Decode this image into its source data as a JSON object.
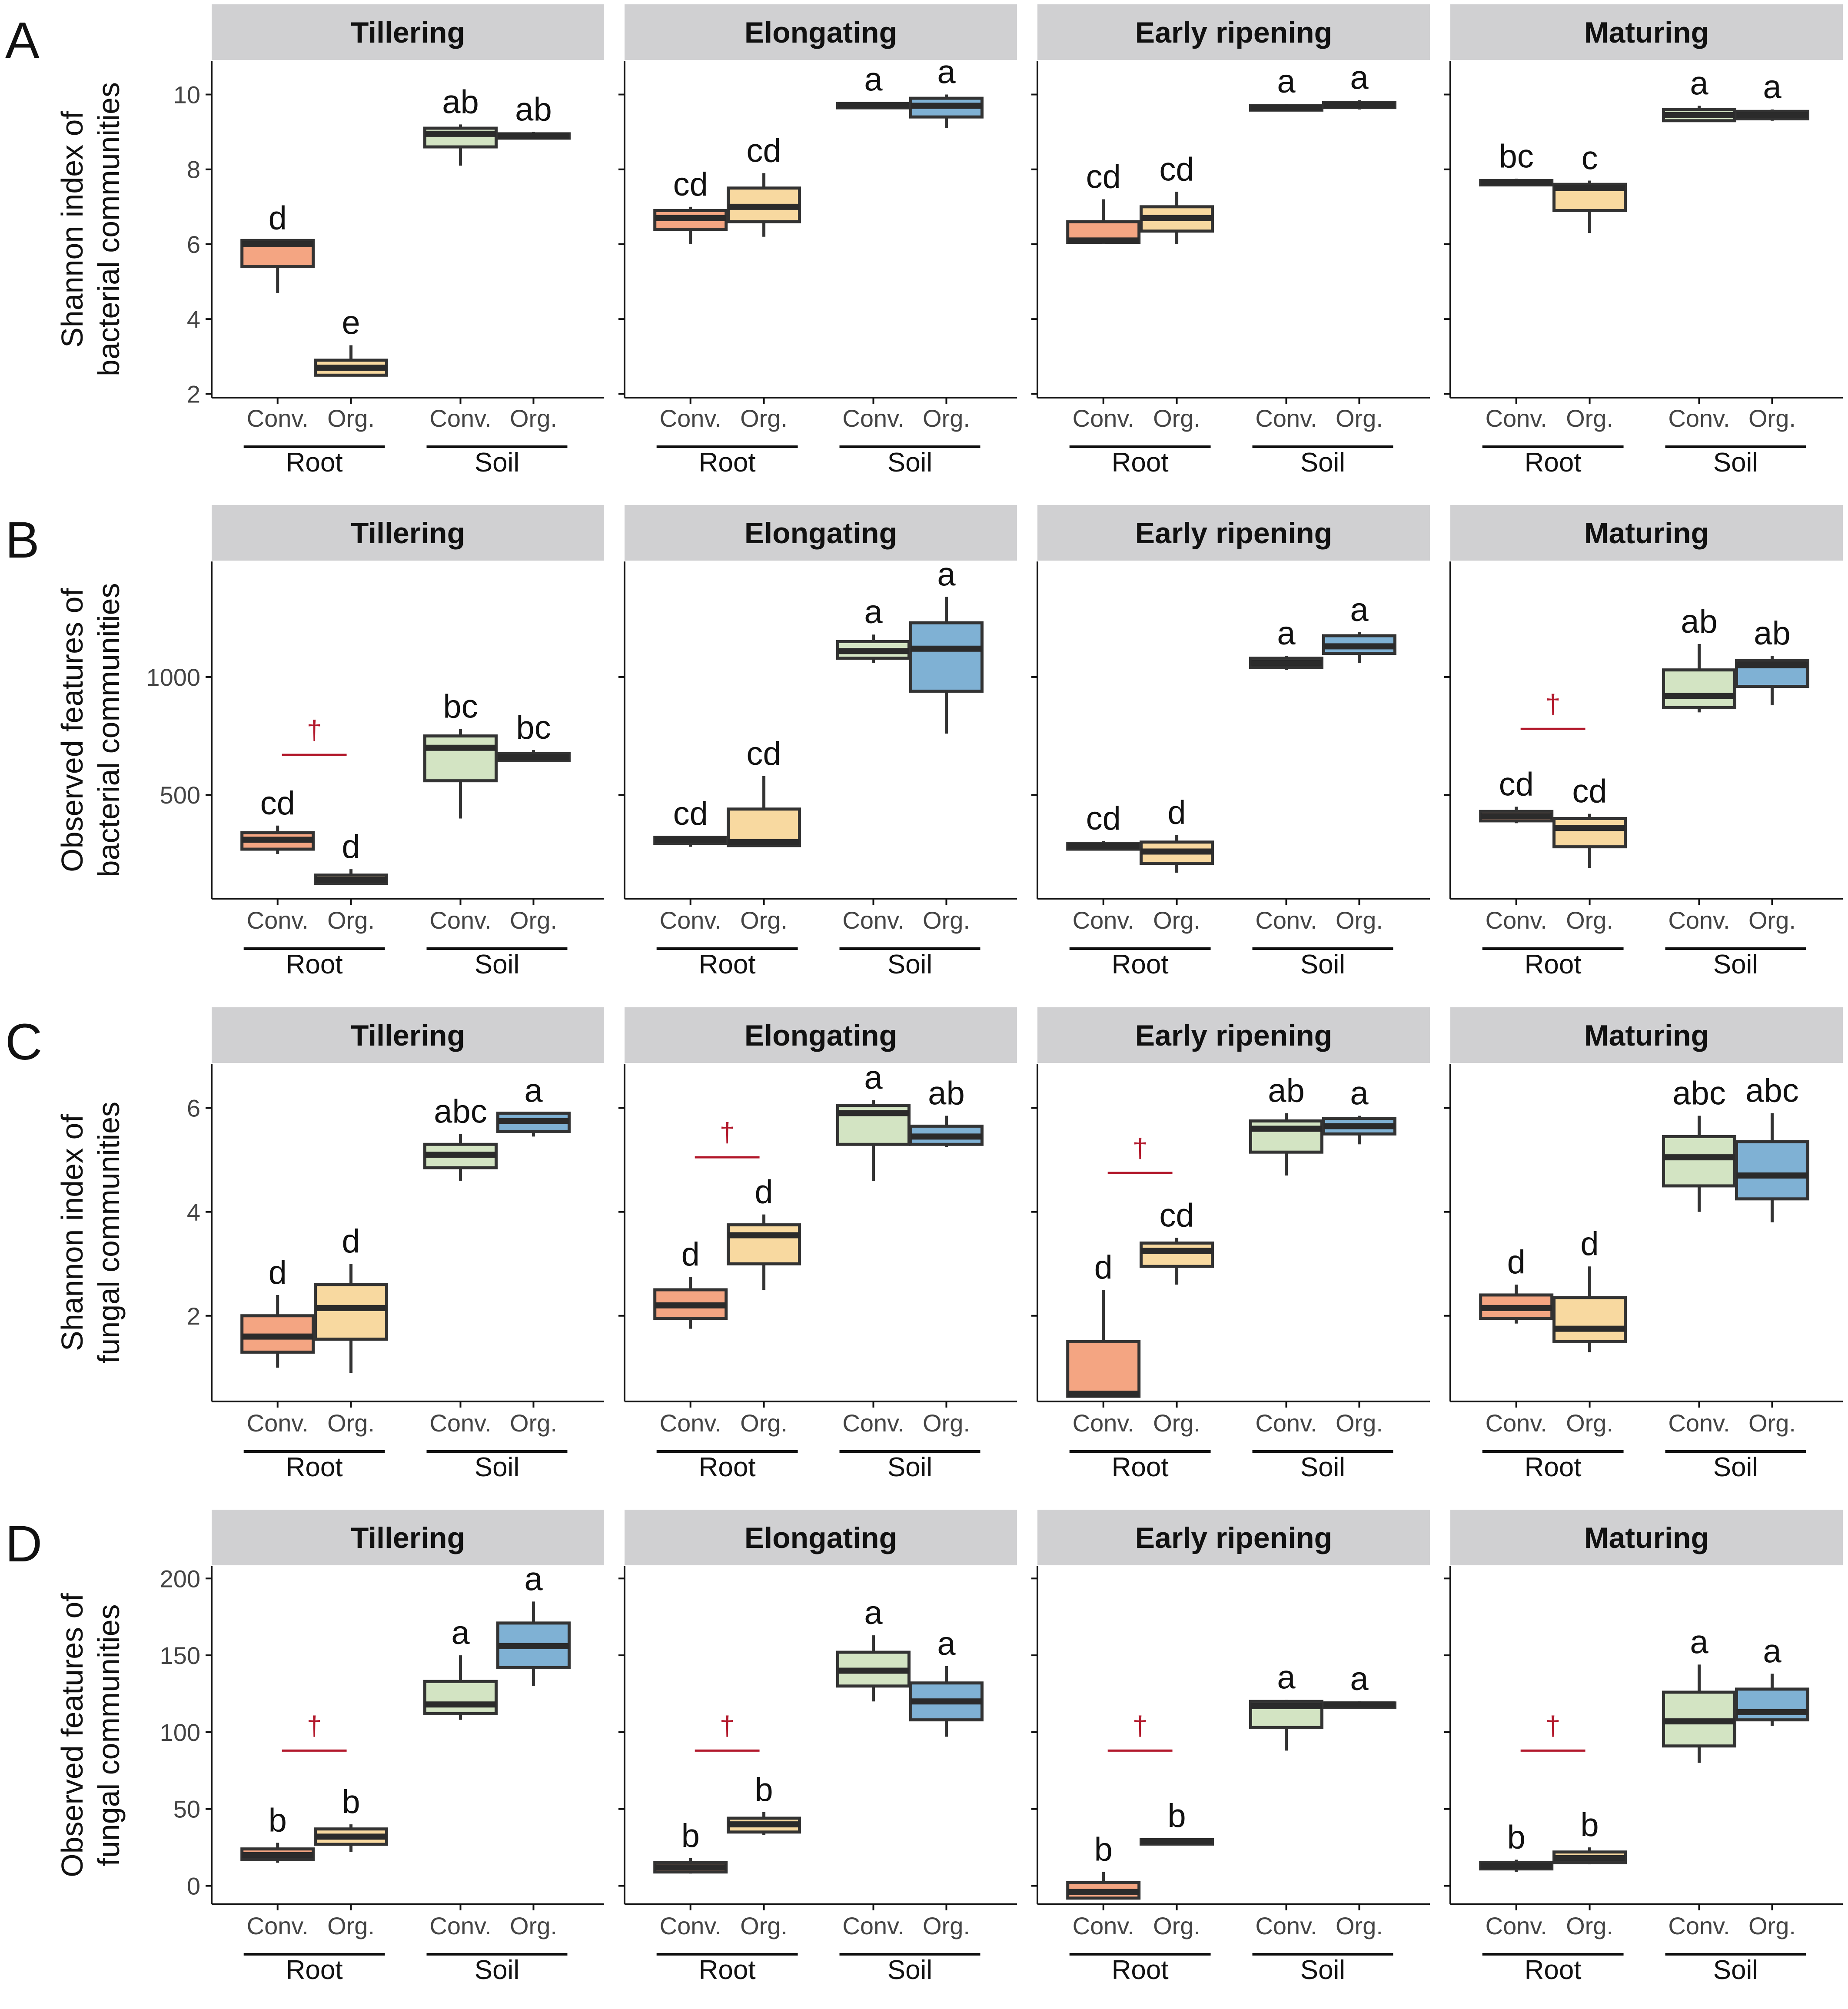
{
  "figure": {
    "stages": [
      "Tillering",
      "Elongating",
      "Early ripening",
      "Maturing"
    ],
    "categories": [
      "Conv.",
      "Org.",
      "Conv.",
      "Org."
    ],
    "groups": [
      "Root",
      "Soil"
    ],
    "series_colors": [
      "#F4A582",
      "#F8D9A0",
      "#D3E4C3",
      "#7FB1D4"
    ],
    "strip_color": "#d0d0d2",
    "sig_color": "#B2182B",
    "dagger": "†"
  },
  "chart_data": [
    {
      "type": "box",
      "panel": "A",
      "ylabel": [
        "Shannon index of",
        "bacterial communities"
      ],
      "ylim": [
        1.9,
        10.9
      ],
      "yticks": [
        2,
        4,
        6,
        8,
        10
      ],
      "facets": [
        {
          "stage": "Tillering",
          "boxes": [
            {
              "min": 4.7,
              "q1": 5.4,
              "med": 6.0,
              "q3": 6.1,
              "max": 6.1,
              "letter": "d"
            },
            {
              "min": 2.5,
              "q1": 2.5,
              "med": 2.7,
              "q3": 2.9,
              "max": 3.3,
              "letter": "e"
            },
            {
              "min": 8.1,
              "q1": 8.6,
              "med": 8.95,
              "q3": 9.1,
              "max": 9.2,
              "letter": "ab"
            },
            {
              "min": 8.8,
              "q1": 8.85,
              "med": 8.9,
              "q3": 8.95,
              "max": 9.0,
              "letter": "ab"
            }
          ]
        },
        {
          "stage": "Elongating",
          "boxes": [
            {
              "min": 6.0,
              "q1": 6.4,
              "med": 6.7,
              "q3": 6.9,
              "max": 7.0,
              "letter": "cd"
            },
            {
              "min": 6.2,
              "q1": 6.6,
              "med": 7.0,
              "q3": 7.5,
              "max": 7.9,
              "letter": "cd"
            },
            {
              "min": 9.65,
              "q1": 9.68,
              "med": 9.72,
              "q3": 9.76,
              "max": 9.8,
              "letter": "a"
            },
            {
              "min": 9.1,
              "q1": 9.4,
              "med": 9.7,
              "q3": 9.9,
              "max": 10.0,
              "letter": "a"
            }
          ]
        },
        {
          "stage": "Early ripening",
          "boxes": [
            {
              "min": 6.0,
              "q1": 6.05,
              "med": 6.1,
              "q3": 6.6,
              "max": 7.2,
              "letter": "cd"
            },
            {
              "min": 6.0,
              "q1": 6.35,
              "med": 6.7,
              "q3": 7.0,
              "max": 7.4,
              "letter": "cd"
            },
            {
              "min": 9.55,
              "q1": 9.6,
              "med": 9.65,
              "q3": 9.7,
              "max": 9.75,
              "letter": "a"
            },
            {
              "min": 9.6,
              "q1": 9.65,
              "med": 9.72,
              "q3": 9.78,
              "max": 9.85,
              "letter": "a"
            }
          ]
        },
        {
          "stage": "Maturing",
          "boxes": [
            {
              "min": 7.55,
              "q1": 7.6,
              "med": 7.65,
              "q3": 7.7,
              "max": 7.75,
              "letter": "bc"
            },
            {
              "min": 6.3,
              "q1": 6.9,
              "med": 7.5,
              "q3": 7.6,
              "max": 7.7,
              "letter": "c"
            },
            {
              "min": 9.3,
              "q1": 9.3,
              "med": 9.45,
              "q3": 9.6,
              "max": 9.7,
              "letter": "a"
            },
            {
              "min": 9.3,
              "q1": 9.35,
              "med": 9.45,
              "q3": 9.55,
              "max": 9.6,
              "letter": "a"
            }
          ]
        }
      ]
    },
    {
      "type": "box",
      "panel": "B",
      "ylabel": [
        "Observed features of",
        "bacterial communities"
      ],
      "ylim": [
        60,
        1490
      ],
      "yticks": [
        500,
        1000
      ],
      "facets": [
        {
          "stage": "Tillering",
          "sig": {
            "from": 0,
            "to": 1,
            "y": 670
          },
          "boxes": [
            {
              "min": 250,
              "q1": 270,
              "med": 310,
              "q3": 340,
              "max": 370,
              "letter": "cd"
            },
            {
              "min": 120,
              "q1": 125,
              "med": 140,
              "q3": 160,
              "max": 185,
              "letter": "d"
            },
            {
              "min": 400,
              "q1": 560,
              "med": 700,
              "q3": 750,
              "max": 780,
              "letter": "bc"
            },
            {
              "min": 640,
              "q1": 645,
              "med": 660,
              "q3": 675,
              "max": 690,
              "letter": "bc"
            }
          ]
        },
        {
          "stage": "Elongating",
          "boxes": [
            {
              "min": 280,
              "q1": 295,
              "med": 310,
              "q3": 320,
              "max": 325,
              "letter": "cd"
            },
            {
              "min": 280,
              "q1": 285,
              "med": 300,
              "q3": 440,
              "max": 580,
              "letter": "cd"
            },
            {
              "min": 1060,
              "q1": 1080,
              "med": 1110,
              "q3": 1150,
              "max": 1180,
              "letter": "a"
            },
            {
              "min": 760,
              "q1": 940,
              "med": 1120,
              "q3": 1230,
              "max": 1340,
              "letter": "a"
            }
          ]
        },
        {
          "stage": "Early ripening",
          "boxes": [
            {
              "min": 265,
              "q1": 270,
              "med": 285,
              "q3": 295,
              "max": 305,
              "letter": "cd"
            },
            {
              "min": 170,
              "q1": 210,
              "med": 260,
              "q3": 300,
              "max": 330,
              "letter": "d"
            },
            {
              "min": 1030,
              "q1": 1040,
              "med": 1060,
              "q3": 1080,
              "max": 1090,
              "letter": "a"
            },
            {
              "min": 1060,
              "q1": 1100,
              "med": 1130,
              "q3": 1175,
              "max": 1190,
              "letter": "a"
            }
          ]
        },
        {
          "stage": "Maturing",
          "sig": {
            "from": 0,
            "to": 1,
            "y": 780
          },
          "boxes": [
            {
              "min": 380,
              "q1": 390,
              "med": 410,
              "q3": 430,
              "max": 450,
              "letter": "cd"
            },
            {
              "min": 190,
              "q1": 280,
              "med": 360,
              "q3": 400,
              "max": 420,
              "letter": "cd"
            },
            {
              "min": 850,
              "q1": 870,
              "med": 920,
              "q3": 1030,
              "max": 1140,
              "letter": "ab"
            },
            {
              "min": 880,
              "q1": 960,
              "med": 1050,
              "q3": 1070,
              "max": 1090,
              "letter": "ab"
            }
          ]
        }
      ]
    },
    {
      "type": "box",
      "panel": "C",
      "ylabel": [
        "Shannon index of",
        "fungal communities"
      ],
      "ylim": [
        0.35,
        6.85
      ],
      "yticks": [
        2,
        4,
        6
      ],
      "facets": [
        {
          "stage": "Tillering",
          "boxes": [
            {
              "min": 1.0,
              "q1": 1.3,
              "med": 1.6,
              "q3": 2.0,
              "max": 2.4,
              "letter": "d"
            },
            {
              "min": 0.9,
              "q1": 1.55,
              "med": 2.15,
              "q3": 2.6,
              "max": 3.0,
              "letter": "d"
            },
            {
              "min": 4.6,
              "q1": 4.85,
              "med": 5.1,
              "q3": 5.3,
              "max": 5.5,
              "letter": "abc"
            },
            {
              "min": 5.45,
              "q1": 5.55,
              "med": 5.75,
              "q3": 5.9,
              "max": 5.9,
              "letter": "a"
            }
          ]
        },
        {
          "stage": "Elongating",
          "sig": {
            "from": 0,
            "to": 1,
            "y": 5.05
          },
          "boxes": [
            {
              "min": 1.75,
              "q1": 1.95,
              "med": 2.2,
              "q3": 2.5,
              "max": 2.75,
              "letter": "d"
            },
            {
              "min": 2.5,
              "q1": 3.0,
              "med": 3.55,
              "q3": 3.75,
              "max": 3.95,
              "letter": "d"
            },
            {
              "min": 4.6,
              "q1": 5.3,
              "med": 5.9,
              "q3": 6.05,
              "max": 6.15,
              "letter": "a"
            },
            {
              "min": 5.25,
              "q1": 5.3,
              "med": 5.45,
              "q3": 5.65,
              "max": 5.85,
              "letter": "ab"
            }
          ]
        },
        {
          "stage": "Early ripening",
          "sig": {
            "from": 0,
            "to": 1,
            "y": 4.75
          },
          "boxes": [
            {
              "min": 0.45,
              "q1": 0.45,
              "med": 0.5,
              "q3": 1.5,
              "max": 2.5,
              "letter": "d"
            },
            {
              "min": 2.6,
              "q1": 2.95,
              "med": 3.25,
              "q3": 3.4,
              "max": 3.5,
              "letter": "cd"
            },
            {
              "min": 4.7,
              "q1": 5.15,
              "med": 5.6,
              "q3": 5.75,
              "max": 5.9,
              "letter": "ab"
            },
            {
              "min": 5.3,
              "q1": 5.5,
              "med": 5.65,
              "q3": 5.8,
              "max": 5.85,
              "letter": "a"
            }
          ]
        },
        {
          "stage": "Maturing",
          "boxes": [
            {
              "min": 1.85,
              "q1": 1.95,
              "med": 2.15,
              "q3": 2.4,
              "max": 2.6,
              "letter": "d"
            },
            {
              "min": 1.3,
              "q1": 1.5,
              "med": 1.75,
              "q3": 2.35,
              "max": 2.95,
              "letter": "d"
            },
            {
              "min": 4.0,
              "q1": 4.5,
              "med": 5.05,
              "q3": 5.45,
              "max": 5.85,
              "letter": "abc"
            },
            {
              "min": 3.8,
              "q1": 4.25,
              "med": 4.7,
              "q3": 5.35,
              "max": 5.9,
              "letter": "abc"
            }
          ]
        }
      ]
    },
    {
      "type": "box",
      "panel": "D",
      "ylabel": [
        "Observed features of",
        "fungal communities"
      ],
      "ylim": [
        -12,
        208
      ],
      "yticks": [
        0,
        50,
        100,
        150,
        200
      ],
      "facets": [
        {
          "stage": "Tillering",
          "sig": {
            "from": 0,
            "to": 1,
            "y": 88
          },
          "boxes": [
            {
              "min": 15,
              "q1": 17,
              "med": 20,
              "q3": 24,
              "max": 28,
              "letter": "b"
            },
            {
              "min": 22,
              "q1": 27,
              "med": 32,
              "q3": 37,
              "max": 40,
              "letter": "b"
            },
            {
              "min": 108,
              "q1": 112,
              "med": 118,
              "q3": 133,
              "max": 150,
              "letter": "a"
            },
            {
              "min": 130,
              "q1": 142,
              "med": 156,
              "q3": 171,
              "max": 185,
              "letter": "a"
            }
          ]
        },
        {
          "stage": "Elongating",
          "sig": {
            "from": 0,
            "to": 1,
            "y": 88
          },
          "boxes": [
            {
              "min": 8,
              "q1": 9,
              "med": 12,
              "q3": 15,
              "max": 18,
              "letter": "b"
            },
            {
              "min": 33,
              "q1": 35,
              "med": 40,
              "q3": 44,
              "max": 48,
              "letter": "b"
            },
            {
              "min": 120,
              "q1": 130,
              "med": 140,
              "q3": 152,
              "max": 163,
              "letter": "a"
            },
            {
              "min": 97,
              "q1": 108,
              "med": 120,
              "q3": 132,
              "max": 143,
              "letter": "a"
            }
          ]
        },
        {
          "stage": "Early ripening",
          "sig": {
            "from": 0,
            "to": 1,
            "y": 88
          },
          "boxes": [
            {
              "min": -8,
              "q1": -8,
              "med": -4,
              "q3": 2,
              "max": 9,
              "letter": "b"
            },
            {
              "min": 27,
              "q1": 28,
              "med": 29,
              "q3": 30,
              "max": 31,
              "letter": "b"
            },
            {
              "min": 88,
              "q1": 103,
              "med": 117,
              "q3": 120,
              "max": 121,
              "letter": "a"
            },
            {
              "min": 116,
              "q1": 117,
              "med": 118,
              "q3": 119,
              "max": 120,
              "letter": "a"
            }
          ]
        },
        {
          "stage": "Maturing",
          "sig": {
            "from": 0,
            "to": 1,
            "y": 88
          },
          "boxes": [
            {
              "min": 9,
              "q1": 11,
              "med": 13,
              "q3": 15,
              "max": 17,
              "letter": "b"
            },
            {
              "min": 14,
              "q1": 15,
              "med": 18,
              "q3": 22,
              "max": 25,
              "letter": "b"
            },
            {
              "min": 80,
              "q1": 91,
              "med": 107,
              "q3": 126,
              "max": 144,
              "letter": "a"
            },
            {
              "min": 104,
              "q1": 108,
              "med": 113,
              "q3": 128,
              "max": 138,
              "letter": "a"
            }
          ]
        }
      ]
    }
  ]
}
